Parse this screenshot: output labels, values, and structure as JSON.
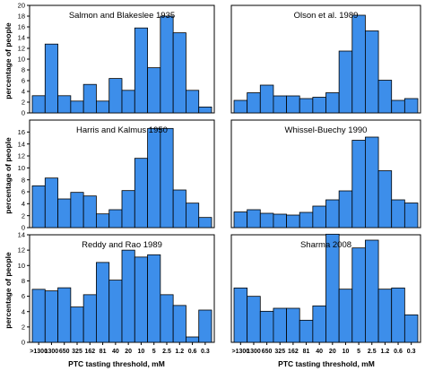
{
  "colors": {
    "bar_fill": "#3d8eea",
    "bar_stroke": "#000000",
    "axis": "#000000"
  },
  "figure": {
    "ylabel": "percentage of people",
    "xlabel": "PTC tasting threshold, mM",
    "x_tick_labels": [
      ">1300",
      "1300",
      "650",
      "325",
      "162",
      "81",
      "40",
      "20",
      "10",
      "5",
      "2.5",
      "1.2",
      "0.6",
      "0.3"
    ]
  },
  "chart_data": [
    {
      "type": "bar",
      "title": "Salmon and Blakeslee 1935",
      "ylim": [
        0,
        20
      ],
      "yticks": [
        0,
        2,
        4,
        6,
        8,
        10,
        12,
        14,
        16,
        18,
        20
      ],
      "categories": [
        ">1300",
        "1300",
        "650",
        "325",
        "162",
        "81",
        "40",
        "20",
        "10",
        "5",
        "2.5",
        "1.2",
        "0.6",
        "0.3"
      ],
      "values": [
        3.2,
        12.8,
        3.2,
        2.2,
        5.3,
        2.2,
        6.4,
        4.2,
        15.8,
        8.4,
        18.0,
        14.9,
        4.2,
        1.1
      ]
    },
    {
      "type": "bar",
      "title": "Olson et al. 1989",
      "ylim": [
        0,
        24
      ],
      "yticks": [],
      "categories": [
        ">1300",
        "1300",
        "650",
        "325",
        "162",
        "81",
        "40",
        "20",
        "10",
        "5",
        "2.5",
        "1.2",
        "0.6",
        "0.3"
      ],
      "values": [
        2.8,
        4.5,
        6.2,
        3.8,
        3.8,
        3.2,
        3.5,
        4.5,
        13.8,
        21.8,
        18.3,
        7.3,
        2.8,
        3.2
      ]
    },
    {
      "type": "bar",
      "title": "Harris and Kalmus 1950",
      "ylim": [
        0,
        18
      ],
      "yticks": [
        0,
        2,
        4,
        6,
        8,
        10,
        12,
        14,
        16
      ],
      "categories": [
        ">1300",
        "1300",
        "650",
        "325",
        "162",
        "81",
        "40",
        "20",
        "10",
        "5",
        "2.5",
        "1.2",
        "0.6",
        "0.3"
      ],
      "values": [
        7.0,
        8.3,
        4.8,
        5.9,
        5.3,
        2.3,
        3.0,
        6.2,
        11.6,
        16.6,
        16.6,
        6.3,
        4.1,
        1.7
      ]
    },
    {
      "type": "bar",
      "title": "Whissel-Buechy 1990",
      "ylim": [
        0,
        24
      ],
      "yticks": [],
      "categories": [
        ">1300",
        "1300",
        "650",
        "325",
        "162",
        "81",
        "40",
        "20",
        "10",
        "5",
        "2.5",
        "1.2",
        "0.6",
        "0.3"
      ],
      "values": [
        3.5,
        4.0,
        3.2,
        3.0,
        2.8,
        3.4,
        4.8,
        6.2,
        8.2,
        19.5,
        20.2,
        12.7,
        6.2,
        5.5
      ]
    },
    {
      "type": "bar",
      "title": "Reddy and Rao 1989",
      "ylim": [
        0,
        14
      ],
      "yticks": [
        0,
        2,
        4,
        6,
        8,
        10,
        12,
        14
      ],
      "categories": [
        ">1300",
        "1300",
        "650",
        "325",
        "162",
        "81",
        "40",
        "20",
        "10",
        "5",
        "2.5",
        "1.2",
        "0.6",
        "0.3"
      ],
      "values": [
        6.9,
        6.7,
        7.1,
        4.6,
        6.2,
        10.4,
        8.1,
        12.0,
        11.1,
        11.4,
        6.2,
        4.8,
        0.7,
        4.2
      ]
    },
    {
      "type": "bar",
      "title": "Sharma 2008",
      "ylim": [
        0,
        18
      ],
      "yticks": [],
      "categories": [
        ">1300",
        "1300",
        "650",
        "325",
        "162",
        "81",
        "40",
        "20",
        "10",
        "5",
        "2.5",
        "1.2",
        "0.6",
        "0.3"
      ],
      "values": [
        9.1,
        7.7,
        5.2,
        5.7,
        5.7,
        3.7,
        6.1,
        18.1,
        8.9,
        15.8,
        17.1,
        8.9,
        9.1,
        4.6
      ]
    }
  ]
}
